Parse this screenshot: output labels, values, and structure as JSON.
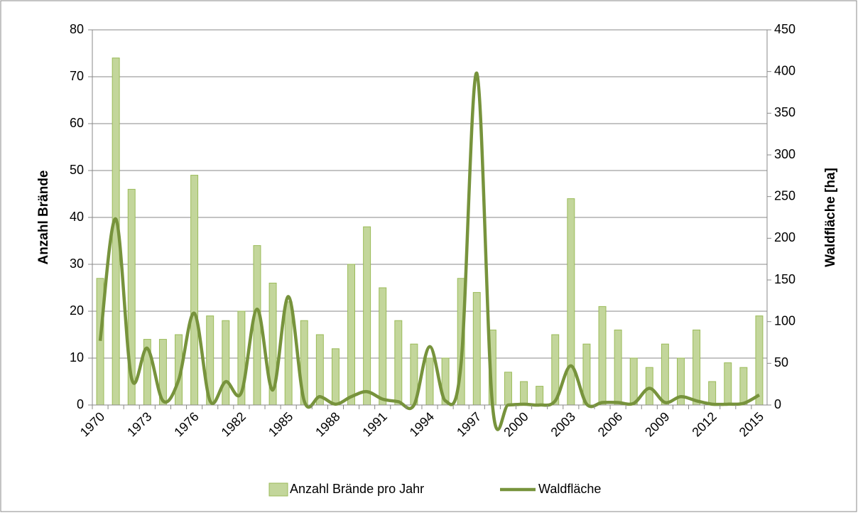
{
  "chart_data": {
    "type": "bar_line",
    "y_label": "Anzahl Brände",
    "y2_label": "Waldfläche [ha]",
    "categories": [
      "1970",
      null,
      null,
      "1973",
      null,
      null,
      "1976",
      null,
      null,
      "1982",
      null,
      null,
      "1985",
      null,
      null,
      "1988",
      null,
      null,
      "1991",
      null,
      null,
      "1994",
      null,
      null,
      "1997",
      null,
      null,
      "2000",
      null,
      null,
      "2003",
      null,
      null,
      "2006",
      null,
      null,
      "2009",
      null,
      null,
      "2012",
      null,
      null,
      "2015"
    ],
    "series": [
      {
        "name": "Anzahl Brände pro Jahr",
        "type": "bar",
        "color": "#c3d69b",
        "edge_color": "#9bbb59",
        "values": [
          27,
          74,
          46,
          14,
          14,
          15,
          49,
          19,
          18,
          20,
          34,
          26,
          22,
          18,
          15,
          12,
          30,
          38,
          25,
          18,
          13,
          10,
          10,
          27,
          24,
          16,
          7,
          5,
          4,
          15,
          44,
          13,
          21,
          16,
          10,
          8,
          13,
          10,
          16,
          5,
          9,
          8,
          19
        ]
      },
      {
        "name": "Waldfläche",
        "type": "line",
        "axis": "y2",
        "color": "#77933c",
        "values": [
          77,
          223,
          32,
          68,
          5,
          30,
          110,
          5,
          28,
          15,
          115,
          18,
          130,
          5,
          10,
          1,
          10,
          16,
          7,
          4,
          0,
          70,
          5,
          50,
          398,
          0,
          0,
          1,
          0,
          5,
          47,
          1,
          3,
          3,
          2,
          20,
          3,
          10,
          5,
          1,
          1,
          2,
          12
        ]
      }
    ],
    "ylim": [
      0,
      80
    ],
    "yticks": [
      0,
      10,
      20,
      30,
      40,
      50,
      60,
      70,
      80
    ],
    "y2lim": [
      0,
      450
    ],
    "y2ticks": [
      0,
      50,
      100,
      150,
      200,
      250,
      300,
      350,
      400,
      450
    ],
    "grid": true,
    "legend": "bottom"
  }
}
